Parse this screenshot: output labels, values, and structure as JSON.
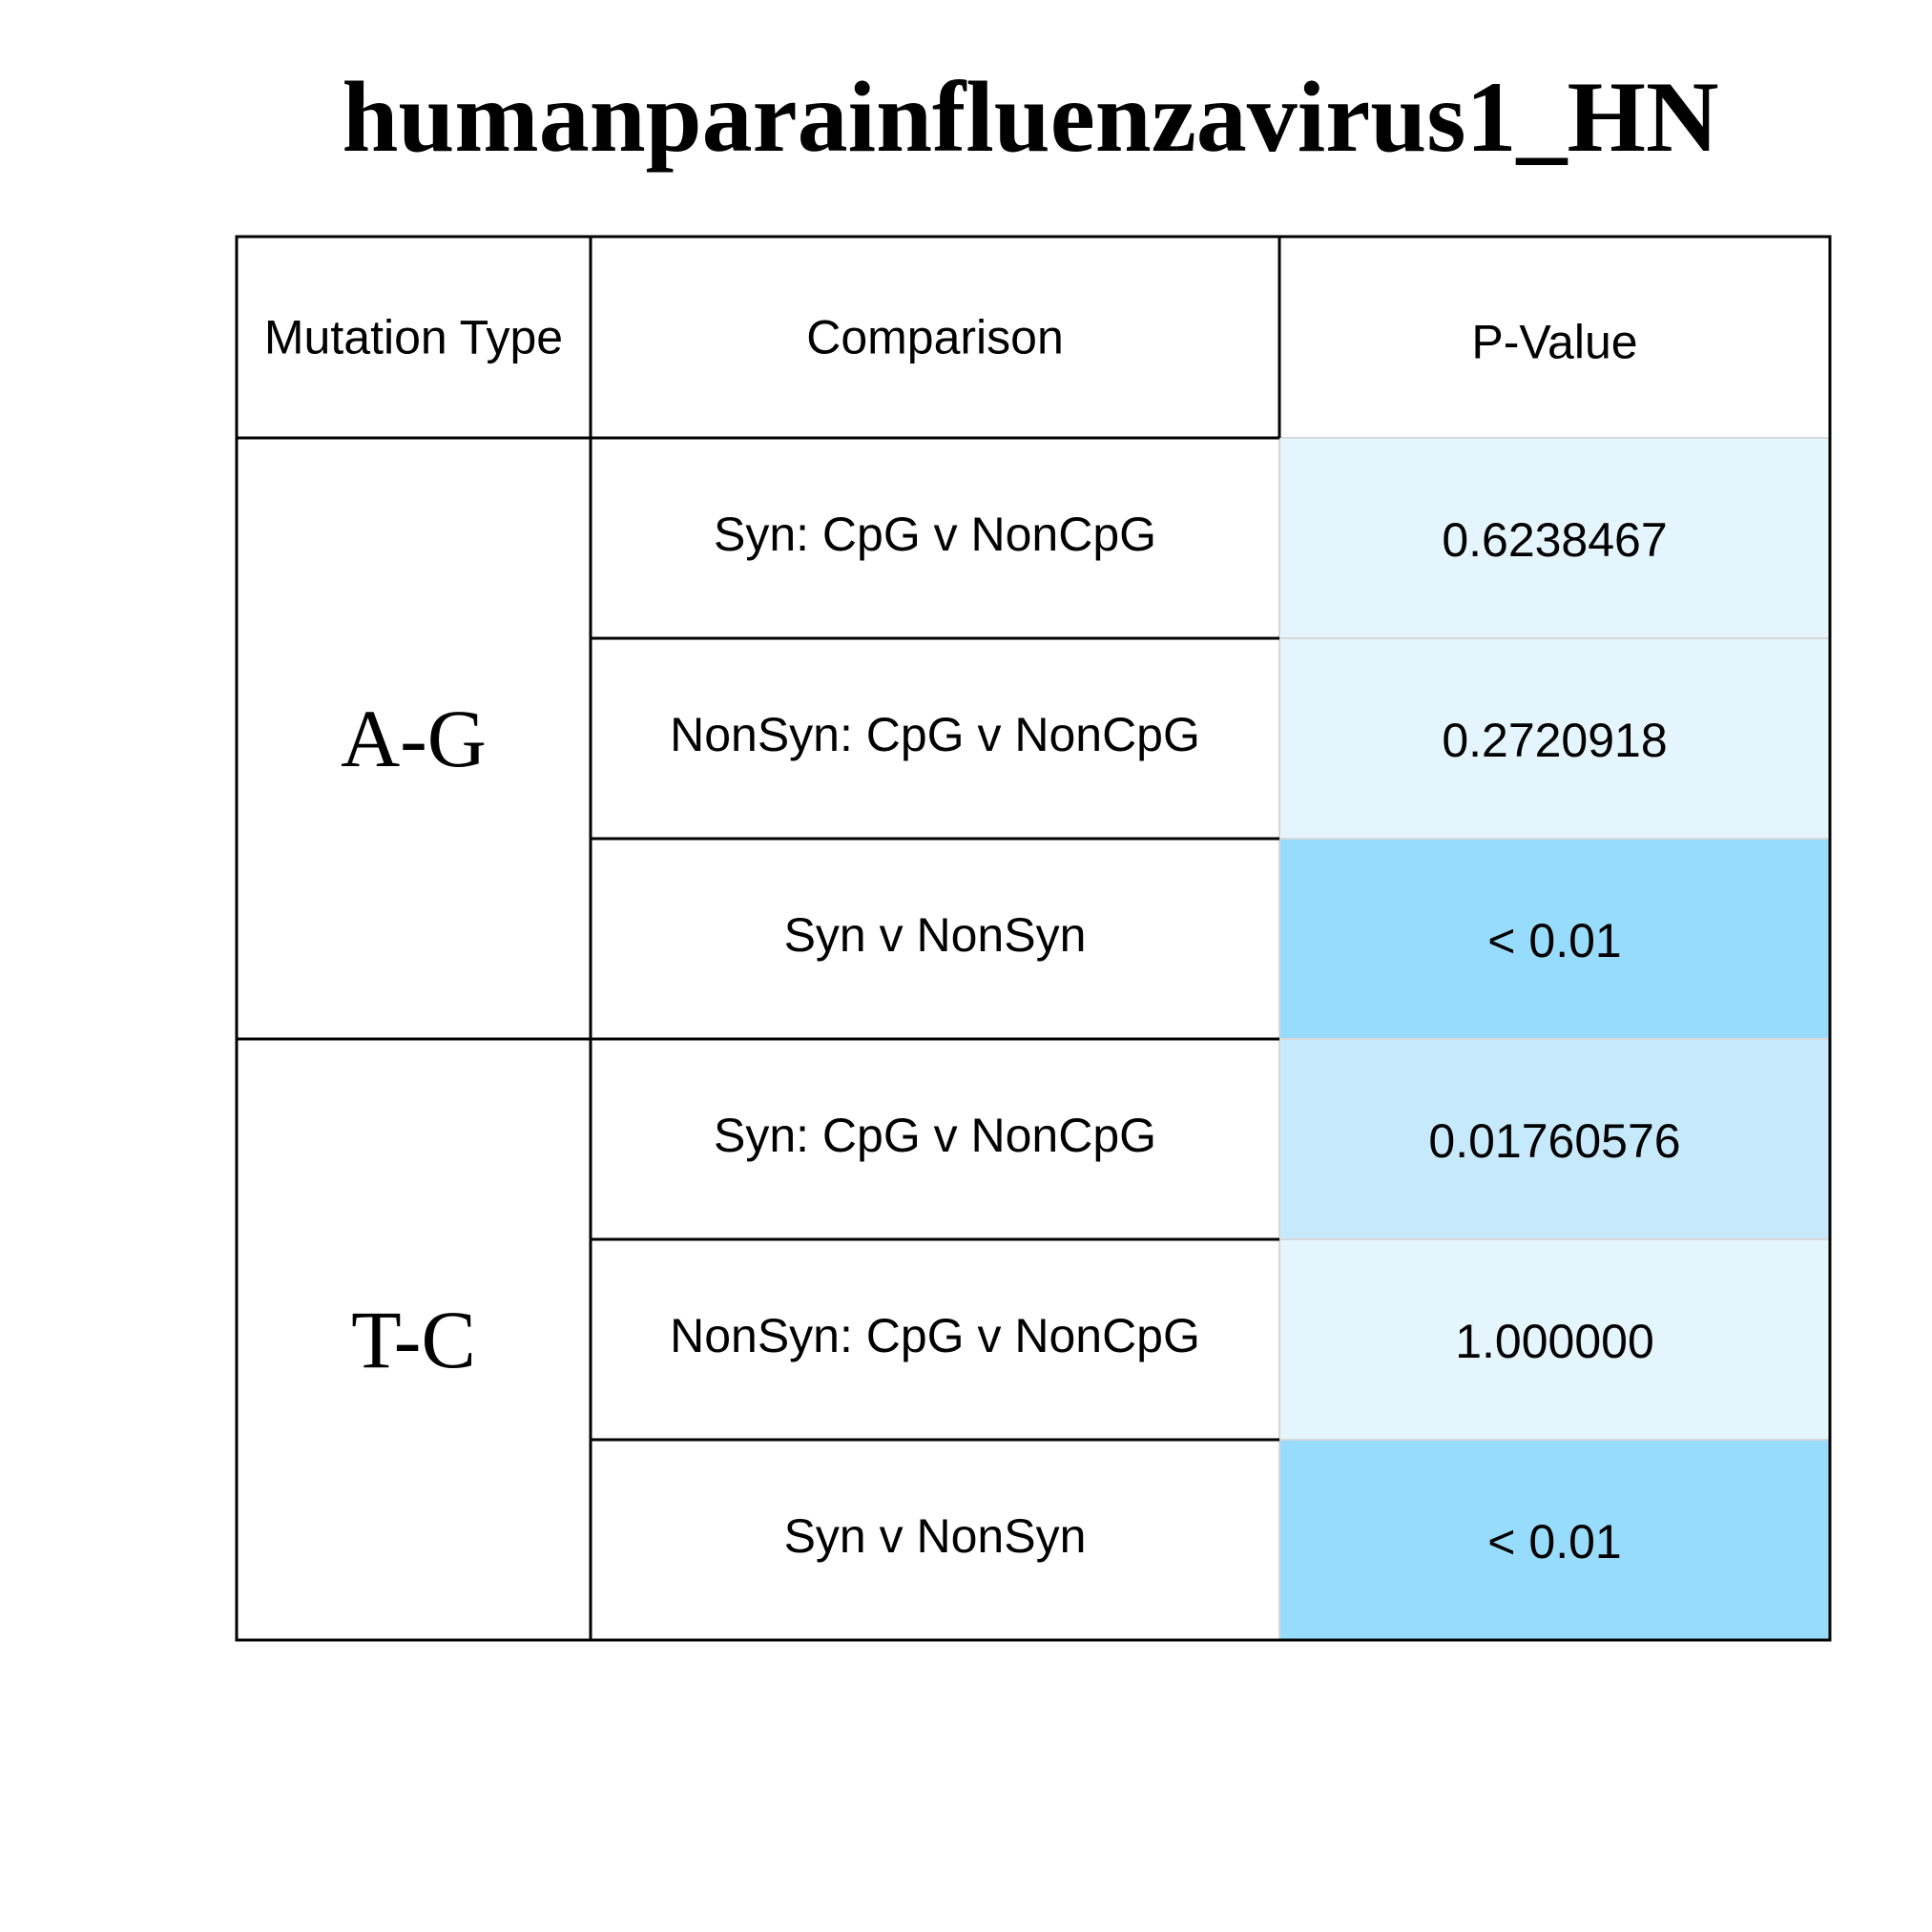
{
  "chart_data": {
    "type": "table",
    "title": "humanparainfluenzavirus1_HN",
    "columns": [
      "Mutation Type",
      "Comparison",
      "P-Value"
    ],
    "groups": [
      {
        "mutation_type": "A-G",
        "rows": [
          {
            "comparison": "Syn: CpG v NonCpG",
            "p_value": "0.6238467",
            "p_numeric": 0.6238467
          },
          {
            "comparison": "NonSyn: CpG v NonCpG",
            "p_value": "0.2720918",
            "p_numeric": 0.2720918
          },
          {
            "comparison": "Syn v NonSyn",
            "p_value": "< 0.01",
            "p_numeric": 0.001
          }
        ]
      },
      {
        "mutation_type": "T-C",
        "rows": [
          {
            "comparison": "Syn: CpG v NonCpG",
            "p_value": "0.01760576",
            "p_numeric": 0.01760576
          },
          {
            "comparison": "NonSyn: CpG v NonCpG",
            "p_value": "1.000000",
            "p_numeric": 1.0
          },
          {
            "comparison": "Syn v NonSyn",
            "p_value": "< 0.01",
            "p_numeric": 0.001
          }
        ]
      }
    ],
    "colors": {
      "significant": "#97dcfc",
      "marginal": "#c6eafc",
      "not_significant": "#e4f5fd",
      "border": "#000000"
    }
  }
}
